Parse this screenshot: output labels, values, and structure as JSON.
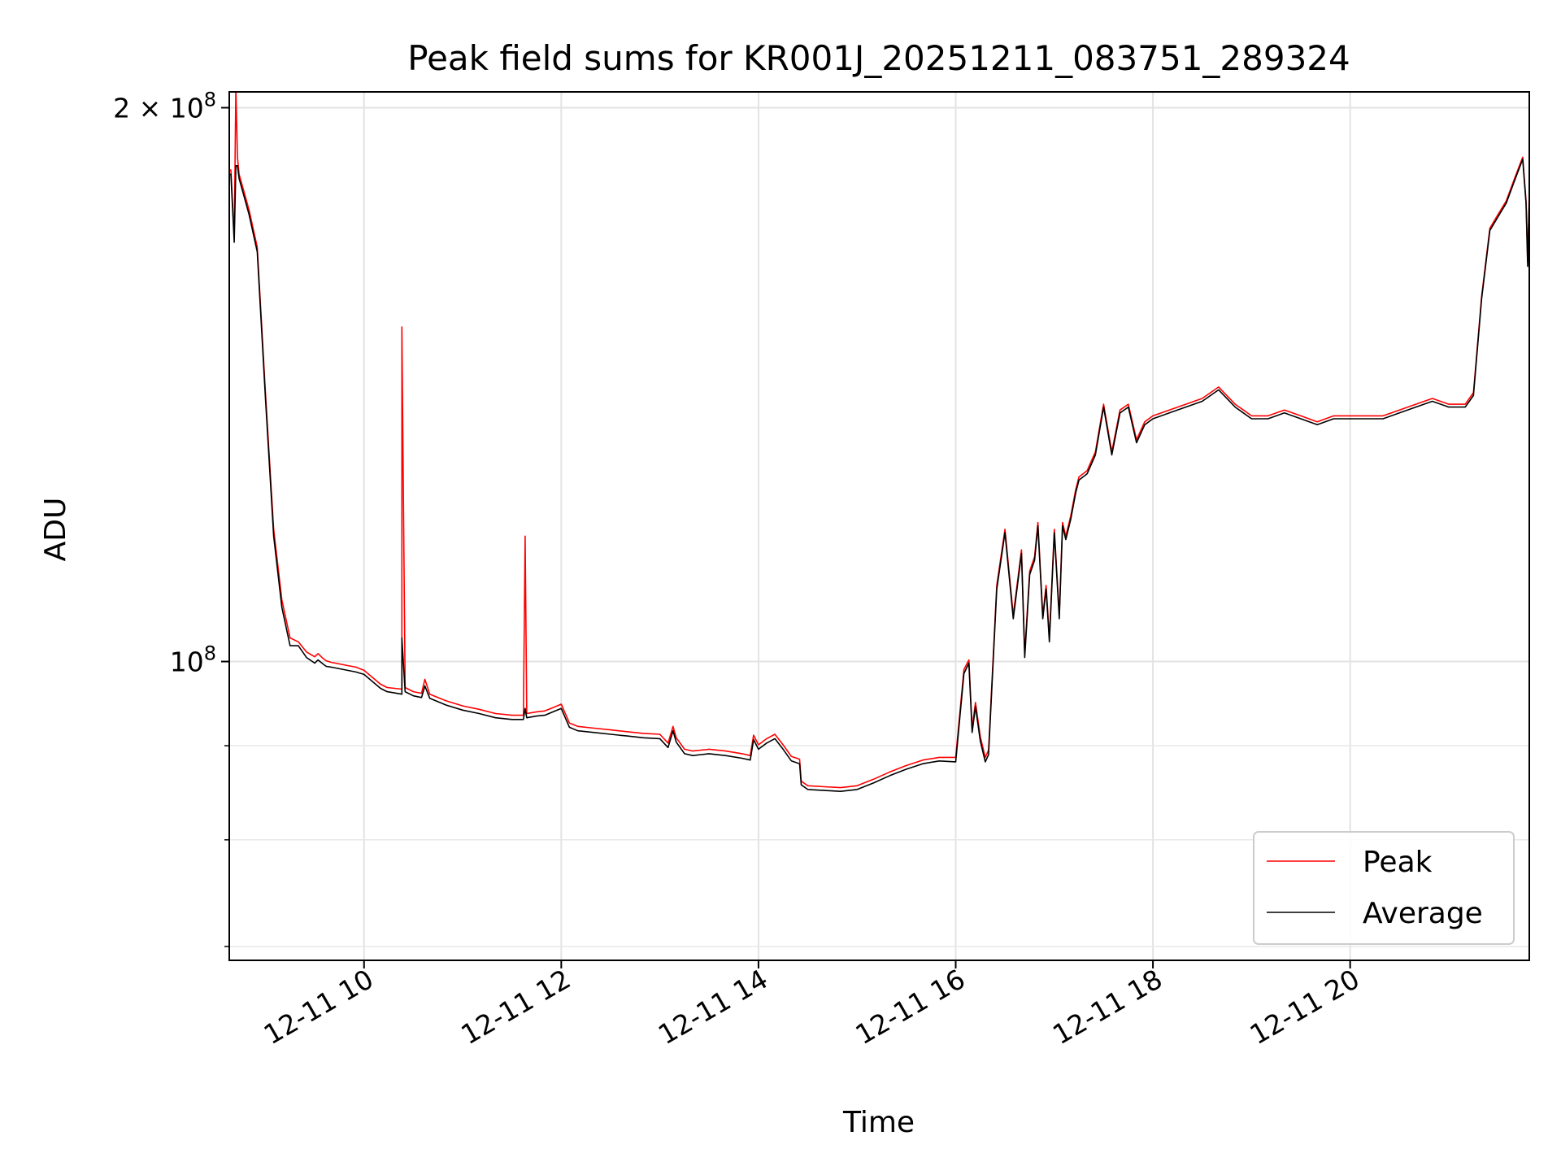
{
  "chart_data": {
    "type": "line",
    "title": "Peak field sums for KR001J_20251211_083751_289324",
    "xlabel": "Time",
    "ylabel": "ADU",
    "xscale": "time",
    "yscale": "log",
    "xlim": [
      "12-11 08:38",
      "12-11 21:49"
    ],
    "ylim": [
      68800000,
      204000000
    ],
    "grid": true,
    "legend": "lower-right",
    "x_tick_labels": [
      "12-11 10",
      "12-11 12",
      "12-11 14",
      "12-11 16",
      "12-11 18",
      "12-11 20"
    ],
    "x_tick_values": [
      "12-11 10:00",
      "12-11 12:00",
      "12-11 14:00",
      "12-11 16:00",
      "12-11 18:00",
      "12-11 20:00"
    ],
    "y_major_ticks": [
      {
        "value": 100000000,
        "base": "10",
        "exp": "8",
        "mult": ""
      },
      {
        "value": 200000000,
        "base": "10",
        "exp": "8",
        "mult": "2 × "
      }
    ],
    "y_minor_ticks": [
      70000000,
      80000000,
      90000000
    ],
    "colors": {
      "peak": "#ff0000",
      "average": "#000000"
    },
    "series": [
      {
        "name": "Peak",
        "color": "#ff0000",
        "x": [
          "08:38",
          "08:39",
          "08:41",
          "08:42",
          "08:43",
          "08:44",
          "08:47",
          "08:50",
          "08:55",
          "09:00",
          "09:05",
          "09:10",
          "09:15",
          "09:20",
          "09:25",
          "09:30",
          "09:32",
          "09:35",
          "09:37",
          "09:40",
          "09:45",
          "09:50",
          "09:55",
          "10:00",
          "10:10",
          "10:14",
          "10:23",
          "10:23",
          "10:25",
          "10:30",
          "10:35",
          "10:37",
          "10:40",
          "10:50",
          "11:00",
          "11:10",
          "11:20",
          "11:30",
          "11:37",
          "11:38",
          "11:39",
          "11:45",
          "11:50",
          "11:55",
          "12:00",
          "12:05",
          "12:10",
          "12:20",
          "12:30",
          "12:40",
          "12:50",
          "13:00",
          "13:05",
          "13:08",
          "13:10",
          "13:15",
          "13:20",
          "13:25",
          "13:30",
          "13:40",
          "13:50",
          "13:55",
          "13:57",
          "14:00",
          "14:05",
          "14:10",
          "14:15",
          "14:20",
          "14:25",
          "14:26",
          "14:30",
          "14:40",
          "14:50",
          "15:00",
          "15:10",
          "15:20",
          "15:30",
          "15:40",
          "15:50",
          "16:00",
          "16:05",
          "16:08",
          "16:10",
          "16:12",
          "16:15",
          "16:18",
          "16:20",
          "16:25",
          "16:30",
          "16:35",
          "16:40",
          "16:42",
          "16:45",
          "16:48",
          "16:50",
          "16:53",
          "16:55",
          "16:57",
          "17:00",
          "17:03",
          "17:05",
          "17:07",
          "17:10",
          "17:13",
          "17:15",
          "17:20",
          "17:25",
          "17:30",
          "17:35",
          "17:40",
          "17:45",
          "17:50",
          "17:55",
          "18:00",
          "18:10",
          "18:20",
          "18:30",
          "18:40",
          "18:50",
          "18:55",
          "19:00",
          "19:10",
          "19:20",
          "19:30",
          "19:40",
          "19:50",
          "20:00",
          "20:10",
          "20:20",
          "20:30",
          "20:40",
          "20:50",
          "21:00",
          "21:10",
          "21:15",
          "21:20",
          "21:25",
          "21:30",
          "21:35",
          "21:40",
          "21:45",
          "21:47",
          "21:48",
          "21:49"
        ],
        "y": [
          185000000,
          185000000,
          170000000,
          205000000,
          188000000,
          184000000,
          180000000,
          176000000,
          168000000,
          140000000,
          118000000,
          108000000,
          103000000,
          102500000,
          101200000,
          100600000,
          101000000,
          100400000,
          100100000,
          99900000,
          99700000,
          99500000,
          99300000,
          98900000,
          97200000,
          96800000,
          96600000,
          152000000,
          96800000,
          96300000,
          96100000,
          97800000,
          96000000,
          95200000,
          94600000,
          94200000,
          93700000,
          93500000,
          93500000,
          117000000,
          93700000,
          93900000,
          94000000,
          94400000,
          94800000,
          92600000,
          92200000,
          92000000,
          91800000,
          91600000,
          91400000,
          91300000,
          90300000,
          92200000,
          90900000,
          89600000,
          89400000,
          89500000,
          89600000,
          89400000,
          89100000,
          88900000,
          91200000,
          90100000,
          90800000,
          91300000,
          90100000,
          88800000,
          88500000,
          86100000,
          85600000,
          85500000,
          85400000,
          85600000,
          86300000,
          87100000,
          87800000,
          88400000,
          88700000,
          88700000,
          99000000,
          100200000,
          92000000,
          95000000,
          91000000,
          88700000,
          89500000,
          110000000,
          118000000,
          106000000,
          115000000,
          101000000,
          112000000,
          114000000,
          119000000,
          106000000,
          110000000,
          103000000,
          118000000,
          106000000,
          119000000,
          117000000,
          120000000,
          124000000,
          126000000,
          127000000,
          130000000,
          138000000,
          130000000,
          137000000,
          138000000,
          132000000,
          135000000,
          136000000,
          137000000,
          138000000,
          139000000,
          141000000,
          138000000,
          137000000,
          136000000,
          136000000,
          137000000,
          136000000,
          135000000,
          136000000,
          136000000,
          136000000,
          136000000,
          137000000,
          138000000,
          139000000,
          138000000,
          138000000,
          140000000,
          158000000,
          172000000,
          175000000,
          178000000,
          183000000,
          188000000,
          178000000,
          165000000,
          180000000
        ]
      },
      {
        "name": "Average",
        "color": "#000000",
        "x": [
          "08:38",
          "08:39",
          "08:41",
          "08:42",
          "08:43",
          "08:44",
          "08:47",
          "08:50",
          "08:55",
          "09:00",
          "09:05",
          "09:10",
          "09:15",
          "09:20",
          "09:25",
          "09:30",
          "09:32",
          "09:35",
          "09:37",
          "09:40",
          "09:45",
          "09:50",
          "09:55",
          "10:00",
          "10:10",
          "10:14",
          "10:23",
          "10:23",
          "10:25",
          "10:30",
          "10:35",
          "10:37",
          "10:40",
          "10:50",
          "11:00",
          "11:10",
          "11:20",
          "11:30",
          "11:37",
          "11:38",
          "11:39",
          "11:45",
          "11:50",
          "11:55",
          "12:00",
          "12:05",
          "12:10",
          "12:20",
          "12:30",
          "12:40",
          "12:50",
          "13:00",
          "13:05",
          "13:08",
          "13:10",
          "13:15",
          "13:20",
          "13:25",
          "13:30",
          "13:40",
          "13:50",
          "13:55",
          "13:57",
          "14:00",
          "14:05",
          "14:10",
          "14:15",
          "14:20",
          "14:25",
          "14:26",
          "14:30",
          "14:40",
          "14:50",
          "15:00",
          "15:10",
          "15:20",
          "15:30",
          "15:40",
          "15:50",
          "16:00",
          "16:05",
          "16:08",
          "16:10",
          "16:12",
          "16:15",
          "16:18",
          "16:20",
          "16:25",
          "16:30",
          "16:35",
          "16:40",
          "16:42",
          "16:45",
          "16:48",
          "16:50",
          "16:53",
          "16:55",
          "16:57",
          "17:00",
          "17:03",
          "17:05",
          "17:07",
          "17:10",
          "17:13",
          "17:15",
          "17:20",
          "17:25",
          "17:30",
          "17:35",
          "17:40",
          "17:45",
          "17:50",
          "17:55",
          "18:00",
          "18:10",
          "18:20",
          "18:30",
          "18:40",
          "18:50",
          "18:55",
          "19:00",
          "19:10",
          "19:20",
          "19:30",
          "19:40",
          "19:50",
          "20:00",
          "20:10",
          "20:20",
          "20:30",
          "20:40",
          "20:50",
          "21:00",
          "21:10",
          "21:15",
          "21:20",
          "21:25",
          "21:30",
          "21:35",
          "21:40",
          "21:45",
          "21:47",
          "21:48",
          "21:49"
        ],
        "y": [
          184000000,
          184000000,
          169000000,
          186000000,
          186000000,
          183000000,
          179000000,
          175000000,
          167000000,
          139000000,
          117000000,
          107000000,
          102000000,
          102000000,
          100500000,
          99800000,
          100200000,
          99700000,
          99400000,
          99300000,
          99100000,
          98900000,
          98700000,
          98400000,
          96700000,
          96300000,
          96000000,
          103000000,
          96300000,
          95800000,
          95600000,
          97000000,
          95500000,
          94700000,
          94100000,
          93700000,
          93200000,
          93000000,
          93000000,
          94300000,
          93200000,
          93400000,
          93500000,
          93900000,
          94300000,
          92100000,
          91700000,
          91500000,
          91300000,
          91100000,
          90900000,
          90800000,
          89800000,
          91700000,
          90400000,
          89100000,
          88900000,
          89000000,
          89100000,
          88900000,
          88600000,
          88400000,
          90700000,
          89600000,
          90300000,
          90800000,
          89600000,
          88300000,
          88000000,
          85700000,
          85200000,
          85100000,
          85000000,
          85200000,
          85900000,
          86700000,
          87400000,
          88000000,
          88300000,
          88200000,
          98500000,
          99800000,
          91500000,
          94500000,
          90500000,
          88200000,
          89000000,
          109500000,
          117500000,
          105500000,
          114500000,
          100500000,
          111500000,
          113500000,
          118500000,
          105500000,
          109500000,
          102500000,
          117500000,
          105500000,
          118500000,
          116500000,
          119500000,
          123500000,
          125500000,
          126500000,
          129500000,
          137500000,
          129500000,
          136500000,
          137500000,
          131500000,
          134500000,
          135500000,
          136500000,
          137500000,
          138500000,
          140500000,
          137500000,
          136500000,
          135500000,
          135500000,
          136500000,
          135500000,
          134500000,
          135500000,
          135500000,
          135500000,
          135500000,
          136500000,
          137500000,
          138500000,
          137500000,
          137500000,
          139500000,
          157500000,
          171500000,
          174500000,
          177500000,
          182500000,
          187500000,
          177500000,
          164000000,
          179000000
        ]
      }
    ]
  }
}
